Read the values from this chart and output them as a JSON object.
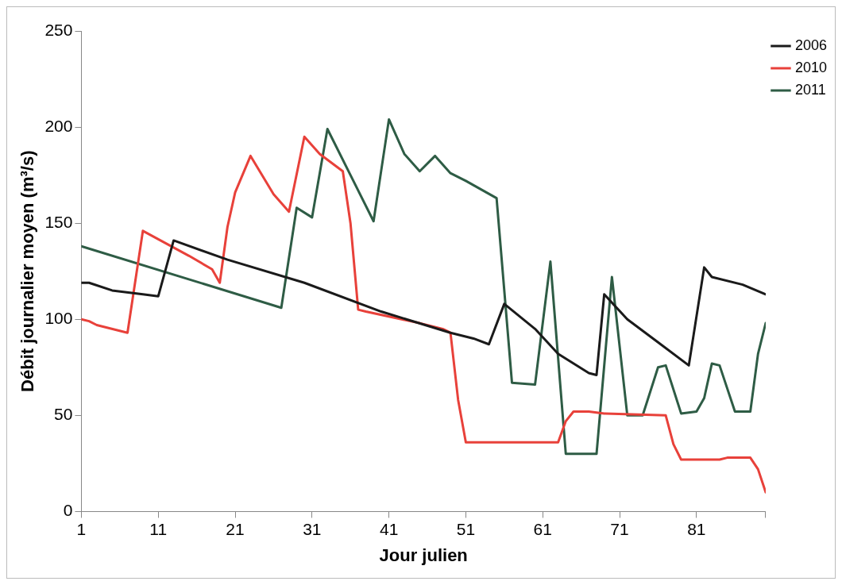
{
  "chart_data": {
    "type": "line",
    "xlabel": "Jour julien",
    "ylabel": "Débit journalier moyen (m³/s)",
    "xlim": [
      1,
      90
    ],
    "xticks": [
      1,
      11,
      21,
      31,
      41,
      51,
      61,
      71,
      81,
      {
        "value": 90,
        "label": null
      }
    ],
    "ylim": [
      0,
      250
    ],
    "yticks": [
      0,
      50,
      100,
      150,
      200,
      250
    ],
    "grid": false,
    "legend": "top right",
    "marker": "none",
    "line_style": "solid",
    "series": [
      {
        "name": "2006",
        "color": "#1a1a1a",
        "x": [
          1,
          2,
          5,
          9,
          11,
          13,
          20,
          30,
          40,
          49,
          52,
          54,
          56,
          60,
          63,
          67,
          68,
          69,
          72,
          76,
          80,
          82,
          83,
          87,
          90
        ],
        "values": [
          119,
          119,
          115,
          113,
          112,
          141,
          131,
          119,
          104,
          93,
          90,
          87,
          108,
          95,
          82,
          72,
          71,
          113,
          100,
          88,
          76,
          127,
          122,
          118,
          113
        ]
      },
      {
        "name": "2010",
        "color": "#e8413a",
        "x": [
          1,
          2,
          3,
          7,
          9,
          15,
          18,
          19,
          20,
          21,
          23,
          26,
          28,
          30,
          32,
          35,
          36,
          37,
          38,
          45,
          48,
          49,
          50,
          51,
          63,
          64,
          65,
          67,
          69,
          77,
          78,
          79,
          84,
          85,
          88,
          89,
          90
        ],
        "values": [
          100,
          99,
          97,
          93,
          146,
          133,
          126,
          119,
          148,
          166,
          185,
          165,
          156,
          195,
          186,
          177,
          150,
          105,
          104,
          98,
          95,
          93,
          58,
          36,
          36,
          47,
          52,
          52,
          51,
          50,
          35,
          27,
          27,
          28,
          28,
          22,
          10
        ]
      },
      {
        "name": "2011",
        "color": "#2e5c45",
        "x": [
          1,
          27,
          29,
          31,
          33,
          36,
          39,
          41,
          43,
          45,
          47,
          49,
          51,
          55,
          57,
          60,
          62,
          64,
          68,
          70,
          72,
          74,
          76,
          77,
          79,
          81,
          82,
          83,
          84,
          86,
          88,
          89,
          90
        ],
        "values": [
          138,
          106,
          158,
          153,
          199,
          175,
          151,
          204,
          186,
          177,
          185,
          176,
          172,
          163,
          67,
          66,
          130,
          30,
          30,
          122,
          50,
          50,
          75,
          76,
          51,
          52,
          59,
          77,
          76,
          52,
          52,
          82,
          98
        ]
      }
    ]
  }
}
